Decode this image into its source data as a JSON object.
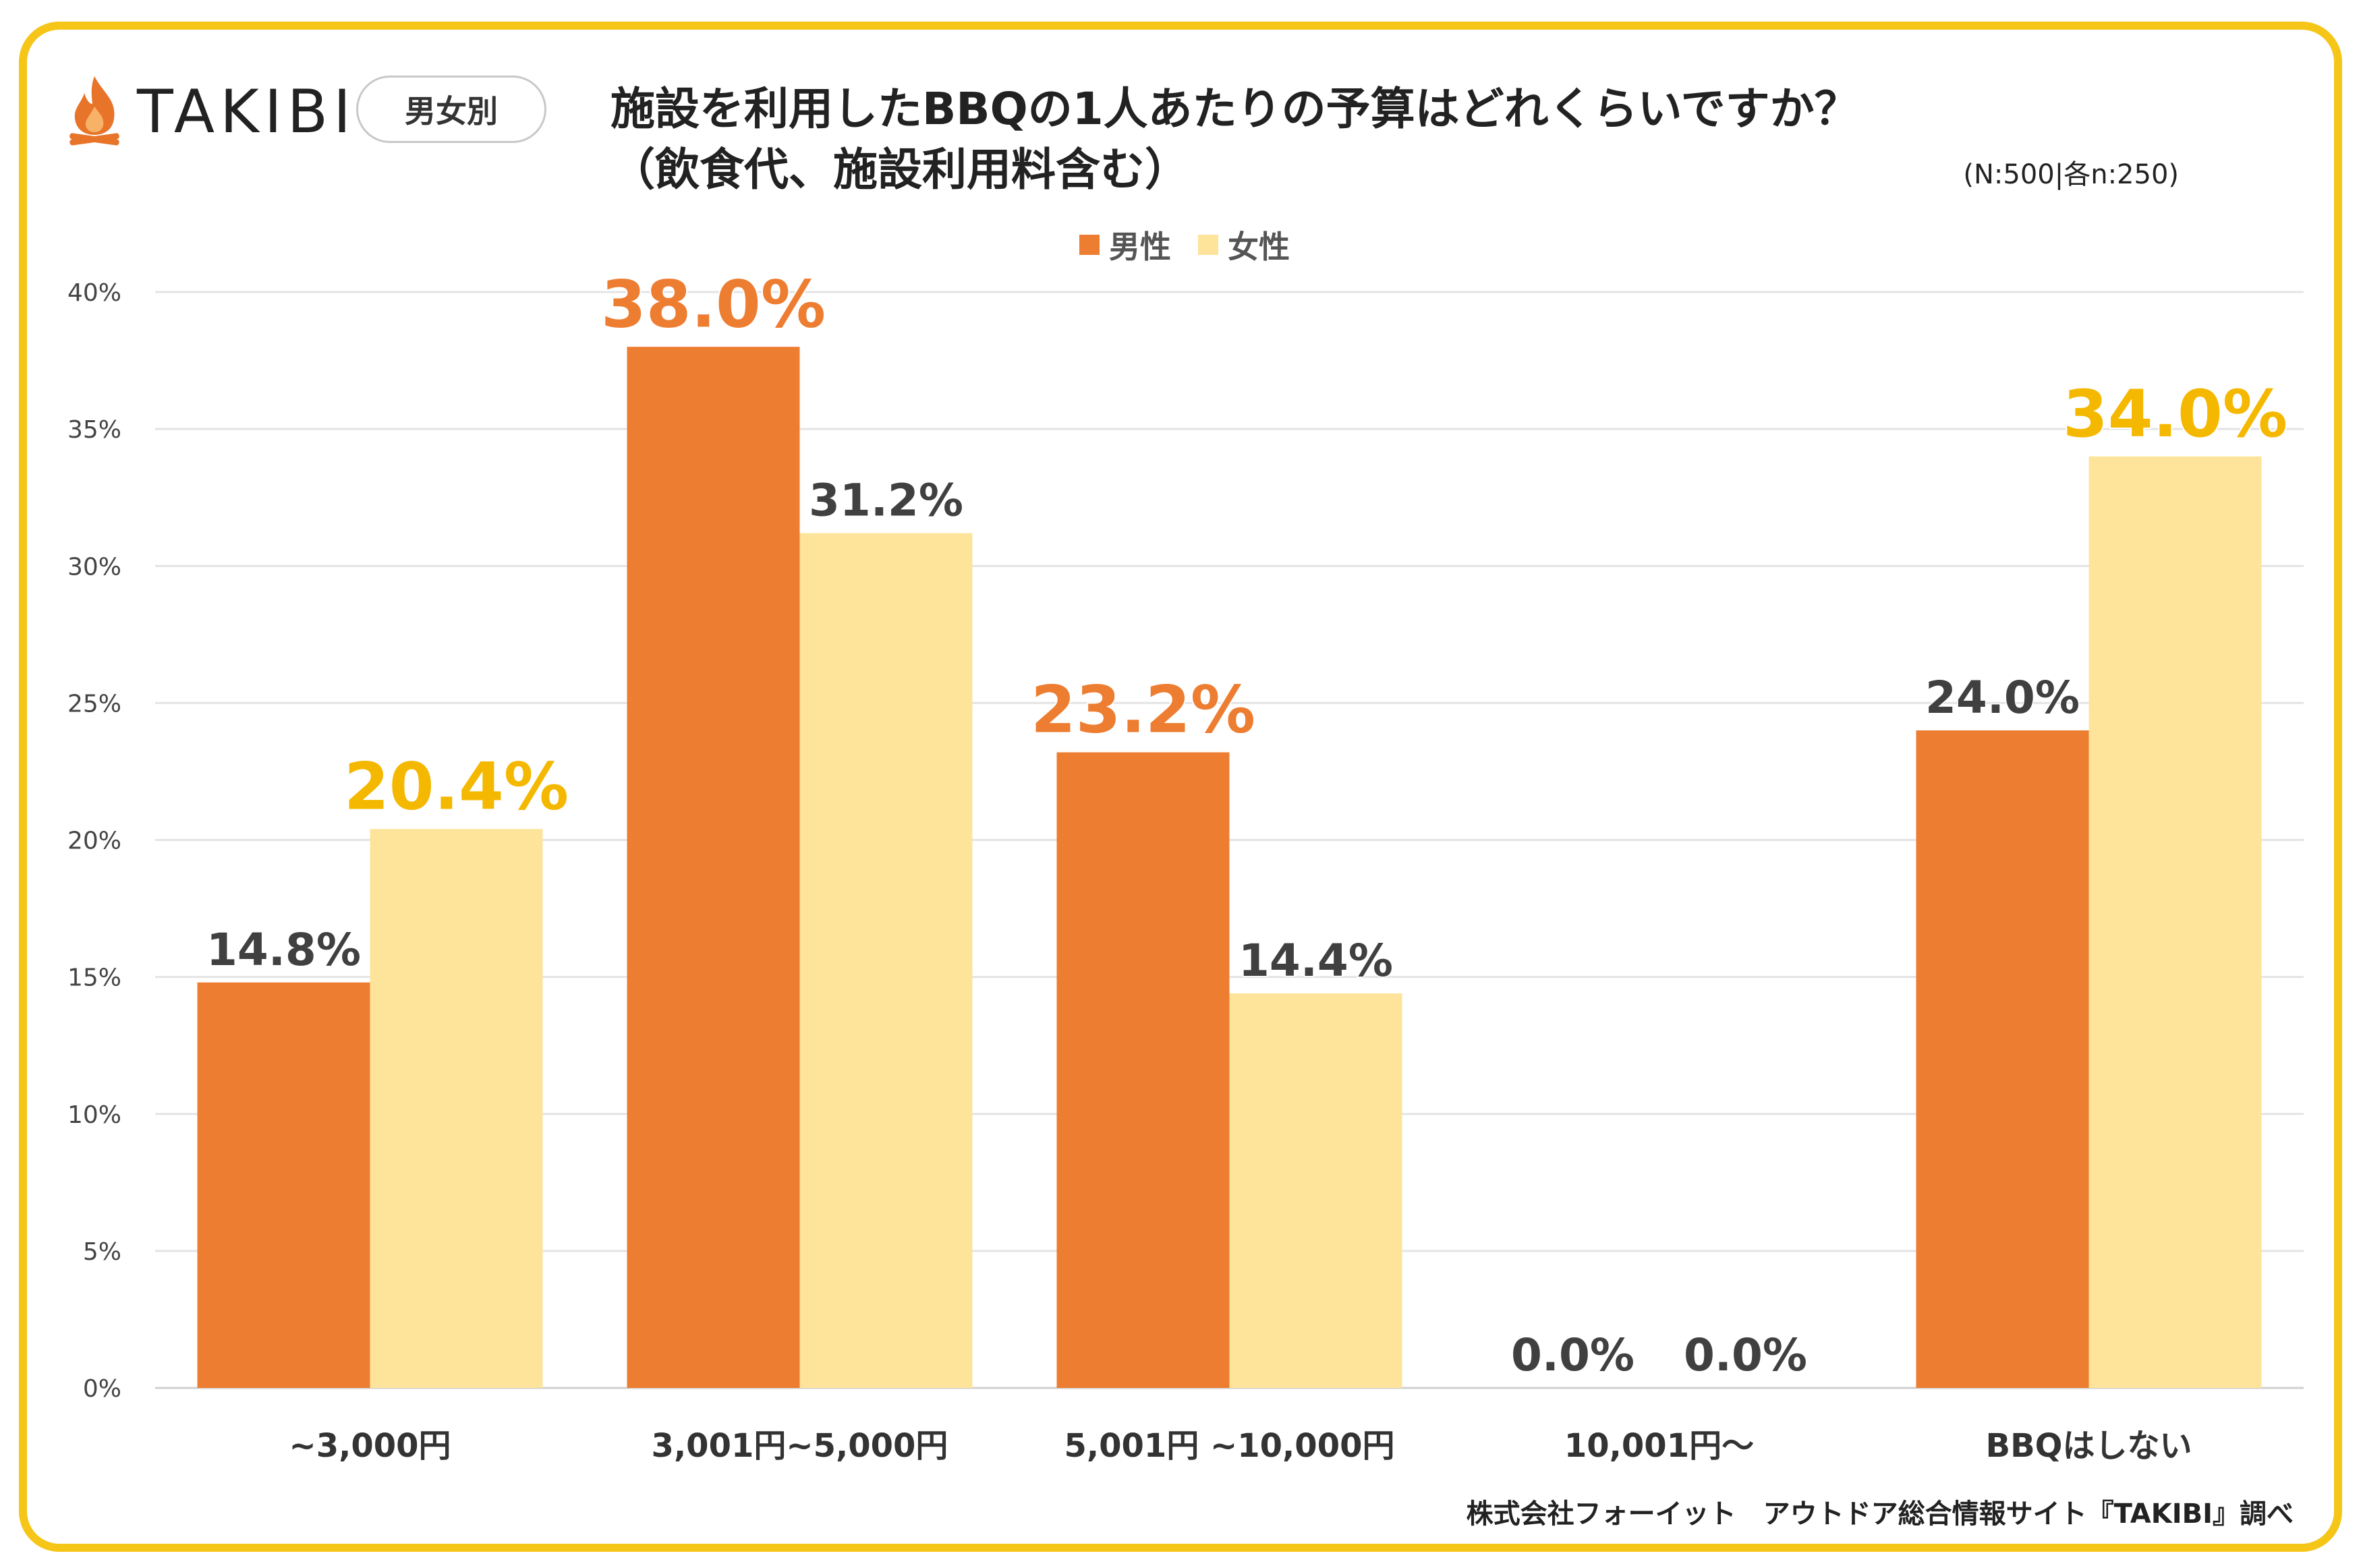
{
  "brand": {
    "name": "TAKIBI",
    "icon": "flame-icon",
    "flame_color": "#e8742a"
  },
  "badge": {
    "label": "男女別"
  },
  "title": {
    "line1": "施設を利用したBBQの1人あたりの予算はどれくらいですか？",
    "line2": "（飲食代、施設利用料含む）"
  },
  "sample_size": "(N:500|各n:250)",
  "footer": "株式会社フォーイット　アウトドア総合情報サイト『TAKIBI』調べ",
  "colors": {
    "male": "#ed7d31",
    "female": "#fde49a",
    "frame": "#f5c518",
    "male_label_highlight": "#ed7d31",
    "female_label_highlight": "#f5b800",
    "label_default": "#404040"
  },
  "chart_data": {
    "type": "bar",
    "title": "施設を利用したBBQの1人あたりの予算はどれくらいですか？（飲食代、施設利用料含む）",
    "categories": [
      "~3,000円",
      "3,001円~5,000円",
      "5,001円 ~10,000円",
      "10,001円～",
      "BBQはしない"
    ],
    "series": [
      {
        "name": "男性",
        "values": [
          14.8,
          38.0,
          23.2,
          0.0,
          24.0
        ],
        "labels": [
          "14.8%",
          "38.0%",
          "23.2%",
          "0.0%",
          "24.0%"
        ],
        "highlight": [
          false,
          true,
          true,
          false,
          false
        ]
      },
      {
        "name": "女性",
        "values": [
          20.4,
          31.2,
          14.4,
          0.0,
          34.0
        ],
        "labels": [
          "20.4%",
          "31.2%",
          "14.4%",
          "0.0%",
          "34.0%"
        ],
        "highlight": [
          true,
          false,
          false,
          false,
          true
        ]
      }
    ],
    "ylim": [
      0,
      40
    ],
    "yticks": [
      "0%",
      "5%",
      "10%",
      "15%",
      "20%",
      "25%",
      "30%",
      "35%",
      "40%"
    ],
    "ytick_values": [
      0,
      5,
      10,
      15,
      20,
      25,
      30,
      35,
      40
    ],
    "grid": true,
    "legend": "top-center",
    "xlabel": "",
    "ylabel": ""
  }
}
